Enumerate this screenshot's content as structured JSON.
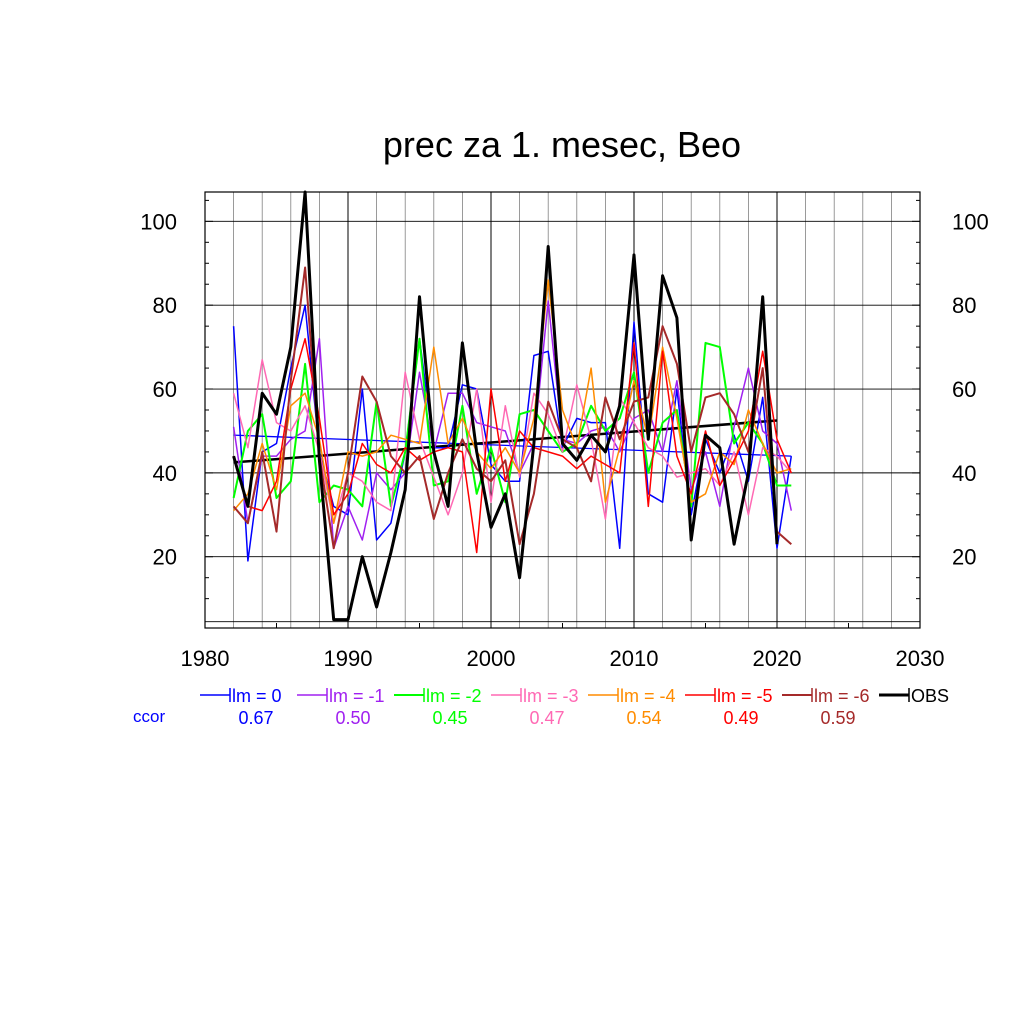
{
  "chart_data": {
    "type": "line",
    "title": "prec za 1. mesec, Beo",
    "xlabel": "",
    "ylabel": "",
    "xlim": [
      1980,
      2030
    ],
    "ylim": [
      3,
      107
    ],
    "x_ticks": [
      1980,
      1990,
      2000,
      2010,
      2020,
      2030
    ],
    "y_ticks": [
      20,
      40,
      60,
      80,
      100
    ],
    "grid": true,
    "legend_position": "bottom",
    "ccor_label": "ccor",
    "series": [
      {
        "name": "lm = 0",
        "color": "#0000ff",
        "width": 1.5,
        "ccor": "0.67",
        "x": [
          1982,
          1983,
          1984,
          1985,
          1986,
          1987,
          1988,
          1989,
          1990,
          1991,
          1992,
          1993,
          1994,
          1995,
          1996,
          1997,
          1998,
          1999,
          2000,
          2001,
          2002,
          2003,
          2004,
          2005,
          2006,
          2007,
          2008,
          2009,
          2010,
          2011,
          2012,
          2013,
          2014,
          2015,
          2016,
          2017,
          2018,
          2019,
          2020,
          2021
        ],
        "values": [
          75,
          19,
          45,
          47,
          65,
          80,
          45,
          32,
          30,
          60,
          24,
          28,
          45,
          72,
          46,
          46,
          61,
          60,
          42,
          38,
          38,
          68,
          69,
          46,
          53,
          52,
          52,
          22,
          76,
          35,
          33,
          60,
          30,
          48,
          40,
          49,
          38,
          58,
          22,
          44
        ]
      },
      {
        "name": "lm = -1",
        "color": "#a020f0",
        "width": 1.5,
        "ccor": "0.50",
        "x": [
          1982,
          1983,
          1984,
          1985,
          1986,
          1987,
          1988,
          1989,
          1990,
          1991,
          1992,
          1993,
          1994,
          1995,
          1996,
          1997,
          1998,
          1999,
          2000,
          2001,
          2002,
          2003,
          2004,
          2005,
          2006,
          2007,
          2008,
          2009,
          2010,
          2011,
          2012,
          2013,
          2014,
          2015,
          2016,
          2017,
          2018,
          2019,
          2020,
          2021
        ],
        "values": [
          51,
          28,
          44,
          44,
          48,
          50,
          72,
          22,
          32,
          24,
          40,
          36,
          40,
          64,
          45,
          59,
          59,
          52,
          51,
          50,
          40,
          47,
          81,
          48,
          47,
          50,
          51,
          45,
          53,
          55,
          45,
          62,
          36,
          45,
          32,
          51,
          65,
          50,
          47,
          31
        ]
      },
      {
        "name": "lm = -2",
        "color": "#00ff00",
        "width": 2,
        "ccor": "0.45",
        "x": [
          1982,
          1983,
          1984,
          1985,
          1986,
          1987,
          1988,
          1989,
          1990,
          1991,
          1992,
          1993,
          1994,
          1995,
          1996,
          1997,
          1998,
          1999,
          2000,
          2001,
          2002,
          2003,
          2004,
          2005,
          2006,
          2007,
          2008,
          2009,
          2010,
          2011,
          2012,
          2013,
          2014,
          2015,
          2016,
          2017,
          2018,
          2019,
          2020,
          2021
        ],
        "values": [
          34,
          50,
          54,
          34,
          38,
          66,
          33,
          37,
          36,
          32,
          57,
          32,
          45,
          72,
          37,
          38,
          56,
          35,
          46,
          33,
          54,
          55,
          50,
          45,
          47,
          56,
          50,
          53,
          64,
          40,
          52,
          55,
          32,
          71,
          70,
          47,
          52,
          47,
          37,
          37
        ]
      },
      {
        "name": "lm = -3",
        "color": "#ff69b4",
        "width": 1.5,
        "ccor": "0.47",
        "x": [
          1982,
          1983,
          1984,
          1985,
          1986,
          1987,
          1988,
          1989,
          1990,
          1991,
          1992,
          1993,
          1994,
          1995,
          1996,
          1997,
          1998,
          1999,
          2000,
          2001,
          2002,
          2003,
          2004,
          2005,
          2006,
          2007,
          2008,
          2009,
          2010,
          2011,
          2012,
          2013,
          2014,
          2015,
          2016,
          2017,
          2018,
          2019,
          2020,
          2021
        ],
        "values": [
          59,
          46,
          67,
          52,
          50,
          56,
          45,
          28,
          40,
          38,
          33,
          31,
          64,
          48,
          39,
          30,
          40,
          60,
          33,
          56,
          39,
          59,
          54,
          45,
          61,
          48,
          29,
          58,
          52,
          46,
          44,
          39,
          40,
          41,
          37,
          45,
          30,
          46,
          44,
          40
        ]
      },
      {
        "name": "lm = -4",
        "color": "#ff8c00",
        "width": 1.5,
        "ccor": "0.54",
        "x": [
          1982,
          1983,
          1984,
          1985,
          1986,
          1987,
          1988,
          1989,
          1990,
          1991,
          1992,
          1993,
          1994,
          1995,
          1996,
          1997,
          1998,
          1999,
          2000,
          2001,
          2002,
          2003,
          2004,
          2005,
          2006,
          2007,
          2008,
          2009,
          2010,
          2011,
          2012,
          2013,
          2014,
          2015,
          2016,
          2017,
          2018,
          2019,
          2020,
          2021
        ],
        "values": [
          31,
          35,
          47,
          36,
          56,
          59,
          48,
          28,
          45,
          44,
          45,
          49,
          48,
          47,
          70,
          47,
          53,
          45,
          41,
          46,
          40,
          53,
          86,
          55,
          46,
          65,
          33,
          46,
          62,
          48,
          70,
          53,
          33,
          35,
          45,
          42,
          55,
          47,
          40,
          41
        ]
      },
      {
        "name": "lm = -5",
        "color": "#ff0000",
        "width": 1.5,
        "ccor": "0.49",
        "x": [
          1982,
          1983,
          1984,
          1985,
          1986,
          1987,
          1988,
          1989,
          1990,
          1991,
          1992,
          1993,
          1994,
          1995,
          1996,
          1997,
          1998,
          1999,
          2000,
          2001,
          2002,
          2003,
          2004,
          2005,
          2006,
          2007,
          2008,
          2009,
          2010,
          2011,
          2012,
          2013,
          2014,
          2015,
          2016,
          2017,
          2018,
          2019,
          2020,
          2021
        ],
        "values": [
          44,
          32,
          31,
          38,
          60,
          72,
          53,
          30,
          35,
          47,
          42,
          40,
          46,
          43,
          45,
          46,
          45,
          21,
          60,
          38,
          50,
          46,
          45,
          44,
          41,
          44,
          42,
          40,
          71,
          32,
          69,
          44,
          35,
          50,
          37,
          43,
          50,
          69,
          48,
          40
        ]
      },
      {
        "name": "lm = -6",
        "color": "#a52a2a",
        "width": 2,
        "ccor": "0.59",
        "x": [
          1982,
          1983,
          1984,
          1985,
          1986,
          1987,
          1988,
          1989,
          1990,
          1991,
          1992,
          1993,
          1994,
          1995,
          1996,
          1997,
          1998,
          1999,
          2000,
          2001,
          2002,
          2003,
          2004,
          2005,
          2006,
          2007,
          2008,
          2009,
          2010,
          2011,
          2012,
          2013,
          2014,
          2015,
          2016,
          2017,
          2018,
          2019,
          2020,
          2021
        ],
        "values": [
          32,
          28,
          45,
          26,
          62,
          89,
          44,
          22,
          40,
          63,
          57,
          44,
          40,
          44,
          29,
          40,
          48,
          41,
          38,
          43,
          23,
          35,
          57,
          48,
          46,
          38,
          58,
          48,
          57,
          58,
          75,
          66,
          45,
          58,
          59,
          54,
          45,
          65,
          26,
          23
        ]
      },
      {
        "name": "OBS",
        "color": "#000000",
        "width": 3,
        "ccor": "",
        "x": [
          1982,
          1983,
          1984,
          1985,
          1986,
          1987,
          1988,
          1989,
          1990,
          1991,
          1992,
          1993,
          1994,
          1995,
          1996,
          1997,
          1998,
          1999,
          2000,
          2001,
          2002,
          2003,
          2004,
          2005,
          2006,
          2007,
          2008,
          2009,
          2010,
          2011,
          2012,
          2013,
          2014,
          2015,
          2016,
          2017,
          2018,
          2019,
          2020,
          2021
        ],
        "values": [
          44,
          32,
          59,
          54,
          70,
          107,
          43,
          5,
          5,
          20,
          8,
          21,
          36,
          82,
          45,
          32,
          71,
          45,
          27,
          35,
          15,
          47,
          94,
          47,
          43,
          49,
          45,
          56,
          92,
          48,
          87,
          77,
          24,
          49,
          46,
          23,
          40,
          82,
          23,
          null
        ]
      }
    ],
    "trend_lines": [
      {
        "series": "lm = 0",
        "color": "#0000ff",
        "width": 1.3,
        "x": [
          1982,
          2021
        ],
        "y": [
          49,
          44
        ]
      },
      {
        "series": "OBS",
        "color": "#000000",
        "width": 2.5,
        "x": [
          1982,
          2020
        ],
        "y": [
          42.5,
          52.5
        ]
      }
    ]
  }
}
